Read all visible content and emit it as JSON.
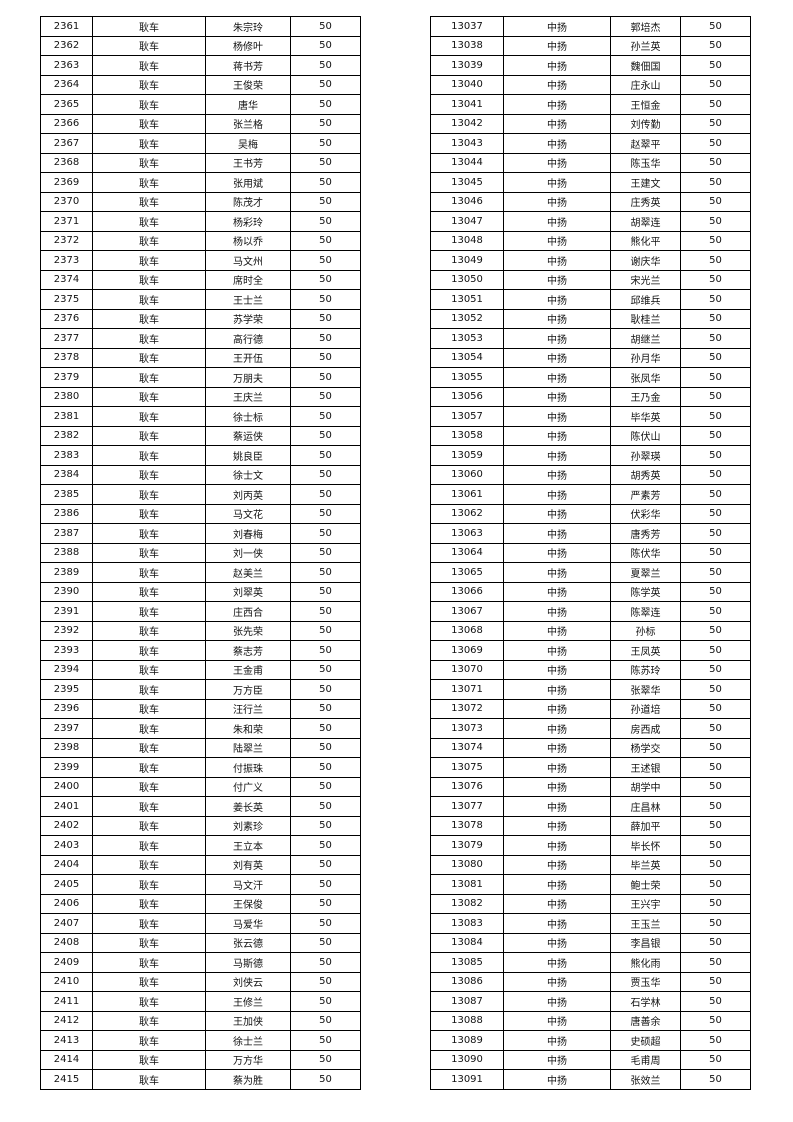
{
  "left_table": {
    "rows": [
      [
        "2361",
        "耿车",
        "朱宗玲",
        "50"
      ],
      [
        "2362",
        "耿车",
        "杨修叶",
        "50"
      ],
      [
        "2363",
        "耿车",
        "蒋书芳",
        "50"
      ],
      [
        "2364",
        "耿车",
        "王俊荣",
        "50"
      ],
      [
        "2365",
        "耿车",
        "唐华",
        "50"
      ],
      [
        "2366",
        "耿车",
        "张兰格",
        "50"
      ],
      [
        "2367",
        "耿车",
        "吴梅",
        "50"
      ],
      [
        "2368",
        "耿车",
        "王书芳",
        "50"
      ],
      [
        "2369",
        "耿车",
        "张用斌",
        "50"
      ],
      [
        "2370",
        "耿车",
        "陈茂才",
        "50"
      ],
      [
        "2371",
        "耿车",
        "杨彩玲",
        "50"
      ],
      [
        "2372",
        "耿车",
        "杨以乔",
        "50"
      ],
      [
        "2373",
        "耿车",
        "马文州",
        "50"
      ],
      [
        "2374",
        "耿车",
        "席时全",
        "50"
      ],
      [
        "2375",
        "耿车",
        "王士兰",
        "50"
      ],
      [
        "2376",
        "耿车",
        "苏学荣",
        "50"
      ],
      [
        "2377",
        "耿车",
        "高行德",
        "50"
      ],
      [
        "2378",
        "耿车",
        "王开伍",
        "50"
      ],
      [
        "2379",
        "耿车",
        "万朋夫",
        "50"
      ],
      [
        "2380",
        "耿车",
        "王庆兰",
        "50"
      ],
      [
        "2381",
        "耿车",
        "徐士标",
        "50"
      ],
      [
        "2382",
        "耿车",
        "蔡运侠",
        "50"
      ],
      [
        "2383",
        "耿车",
        "姚良臣",
        "50"
      ],
      [
        "2384",
        "耿车",
        "徐士文",
        "50"
      ],
      [
        "2385",
        "耿车",
        "刘丙英",
        "50"
      ],
      [
        "2386",
        "耿车",
        "马文花",
        "50"
      ],
      [
        "2387",
        "耿车",
        "刘春梅",
        "50"
      ],
      [
        "2388",
        "耿车",
        "刘一侠",
        "50"
      ],
      [
        "2389",
        "耿车",
        "赵美兰",
        "50"
      ],
      [
        "2390",
        "耿车",
        "刘翠英",
        "50"
      ],
      [
        "2391",
        "耿车",
        "庄西合",
        "50"
      ],
      [
        "2392",
        "耿车",
        "张先荣",
        "50"
      ],
      [
        "2393",
        "耿车",
        "蔡志芳",
        "50"
      ],
      [
        "2394",
        "耿车",
        "王金甫",
        "50"
      ],
      [
        "2395",
        "耿车",
        "万方臣",
        "50"
      ],
      [
        "2396",
        "耿车",
        "汪行兰",
        "50"
      ],
      [
        "2397",
        "耿车",
        "朱和荣",
        "50"
      ],
      [
        "2398",
        "耿车",
        "陆翠兰",
        "50"
      ],
      [
        "2399",
        "耿车",
        "付振珠",
        "50"
      ],
      [
        "2400",
        "耿车",
        "付广义",
        "50"
      ],
      [
        "2401",
        "耿车",
        "姜长英",
        "50"
      ],
      [
        "2402",
        "耿车",
        "刘素珍",
        "50"
      ],
      [
        "2403",
        "耿车",
        "王立本",
        "50"
      ],
      [
        "2404",
        "耿车",
        "刘有英",
        "50"
      ],
      [
        "2405",
        "耿车",
        "马文汗",
        "50"
      ],
      [
        "2406",
        "耿车",
        "王保俊",
        "50"
      ],
      [
        "2407",
        "耿车",
        "马爱华",
        "50"
      ],
      [
        "2408",
        "耿车",
        "张云德",
        "50"
      ],
      [
        "2409",
        "耿车",
        "马斯德",
        "50"
      ],
      [
        "2410",
        "耿车",
        "刘侠云",
        "50"
      ],
      [
        "2411",
        "耿车",
        "王修兰",
        "50"
      ],
      [
        "2412",
        "耿车",
        "王加侠",
        "50"
      ],
      [
        "2413",
        "耿车",
        "徐士兰",
        "50"
      ],
      [
        "2414",
        "耿车",
        "万方华",
        "50"
      ],
      [
        "2415",
        "耿车",
        "蔡为胜",
        "50"
      ]
    ]
  },
  "right_table": {
    "rows": [
      [
        "13037",
        "中扬",
        "郭培杰",
        "50"
      ],
      [
        "13038",
        "中扬",
        "孙兰英",
        "50"
      ],
      [
        "13039",
        "中扬",
        "魏佃国",
        "50"
      ],
      [
        "13040",
        "中扬",
        "庄永山",
        "50"
      ],
      [
        "13041",
        "中扬",
        "王恒金",
        "50"
      ],
      [
        "13042",
        "中扬",
        "刘传勤",
        "50"
      ],
      [
        "13043",
        "中扬",
        "赵翠平",
        "50"
      ],
      [
        "13044",
        "中扬",
        "陈玉华",
        "50"
      ],
      [
        "13045",
        "中扬",
        "王建文",
        "50"
      ],
      [
        "13046",
        "中扬",
        "庄秀英",
        "50"
      ],
      [
        "13047",
        "中扬",
        "胡翠连",
        "50"
      ],
      [
        "13048",
        "中扬",
        "熊化平",
        "50"
      ],
      [
        "13049",
        "中扬",
        "谢庆华",
        "50"
      ],
      [
        "13050",
        "中扬",
        "宋光兰",
        "50"
      ],
      [
        "13051",
        "中扬",
        "邱维兵",
        "50"
      ],
      [
        "13052",
        "中扬",
        "耿桂兰",
        "50"
      ],
      [
        "13053",
        "中扬",
        "胡继兰",
        "50"
      ],
      [
        "13054",
        "中扬",
        "孙月华",
        "50"
      ],
      [
        "13055",
        "中扬",
        "张凤华",
        "50"
      ],
      [
        "13056",
        "中扬",
        "王乃金",
        "50"
      ],
      [
        "13057",
        "中扬",
        "毕华英",
        "50"
      ],
      [
        "13058",
        "中扬",
        "陈伏山",
        "50"
      ],
      [
        "13059",
        "中扬",
        "孙翠瑛",
        "50"
      ],
      [
        "13060",
        "中扬",
        "胡秀英",
        "50"
      ],
      [
        "13061",
        "中扬",
        "严素芳",
        "50"
      ],
      [
        "13062",
        "中扬",
        "伏彩华",
        "50"
      ],
      [
        "13063",
        "中扬",
        "唐秀芳",
        "50"
      ],
      [
        "13064",
        "中扬",
        "陈伏华",
        "50"
      ],
      [
        "13065",
        "中扬",
        "夏翠兰",
        "50"
      ],
      [
        "13066",
        "中扬",
        "陈学英",
        "50"
      ],
      [
        "13067",
        "中扬",
        "陈翠连",
        "50"
      ],
      [
        "13068",
        "中扬",
        "孙标",
        "50"
      ],
      [
        "13069",
        "中扬",
        "王凤英",
        "50"
      ],
      [
        "13070",
        "中扬",
        "陈苏玲",
        "50"
      ],
      [
        "13071",
        "中扬",
        "张翠华",
        "50"
      ],
      [
        "13072",
        "中扬",
        "孙道培",
        "50"
      ],
      [
        "13073",
        "中扬",
        "房西成",
        "50"
      ],
      [
        "13074",
        "中扬",
        "杨学交",
        "50"
      ],
      [
        "13075",
        "中扬",
        "王述银",
        "50"
      ],
      [
        "13076",
        "中扬",
        "胡学中",
        "50"
      ],
      [
        "13077",
        "中扬",
        "庄昌林",
        "50"
      ],
      [
        "13078",
        "中扬",
        "薛加平",
        "50"
      ],
      [
        "13079",
        "中扬",
        "毕长怀",
        "50"
      ],
      [
        "13080",
        "中扬",
        "毕兰英",
        "50"
      ],
      [
        "13081",
        "中扬",
        "鲍士荣",
        "50"
      ],
      [
        "13082",
        "中扬",
        "王兴宇",
        "50"
      ],
      [
        "13083",
        "中扬",
        "王玉兰",
        "50"
      ],
      [
        "13084",
        "中扬",
        "李昌银",
        "50"
      ],
      [
        "13085",
        "中扬",
        "熊化雨",
        "50"
      ],
      [
        "13086",
        "中扬",
        "贾玉华",
        "50"
      ],
      [
        "13087",
        "中扬",
        "石学林",
        "50"
      ],
      [
        "13088",
        "中扬",
        "唐善余",
        "50"
      ],
      [
        "13089",
        "中扬",
        "史硕超",
        "50"
      ],
      [
        "13090",
        "中扬",
        "毛甫周",
        "50"
      ],
      [
        "13091",
        "中扬",
        "张效兰",
        "50"
      ]
    ]
  }
}
